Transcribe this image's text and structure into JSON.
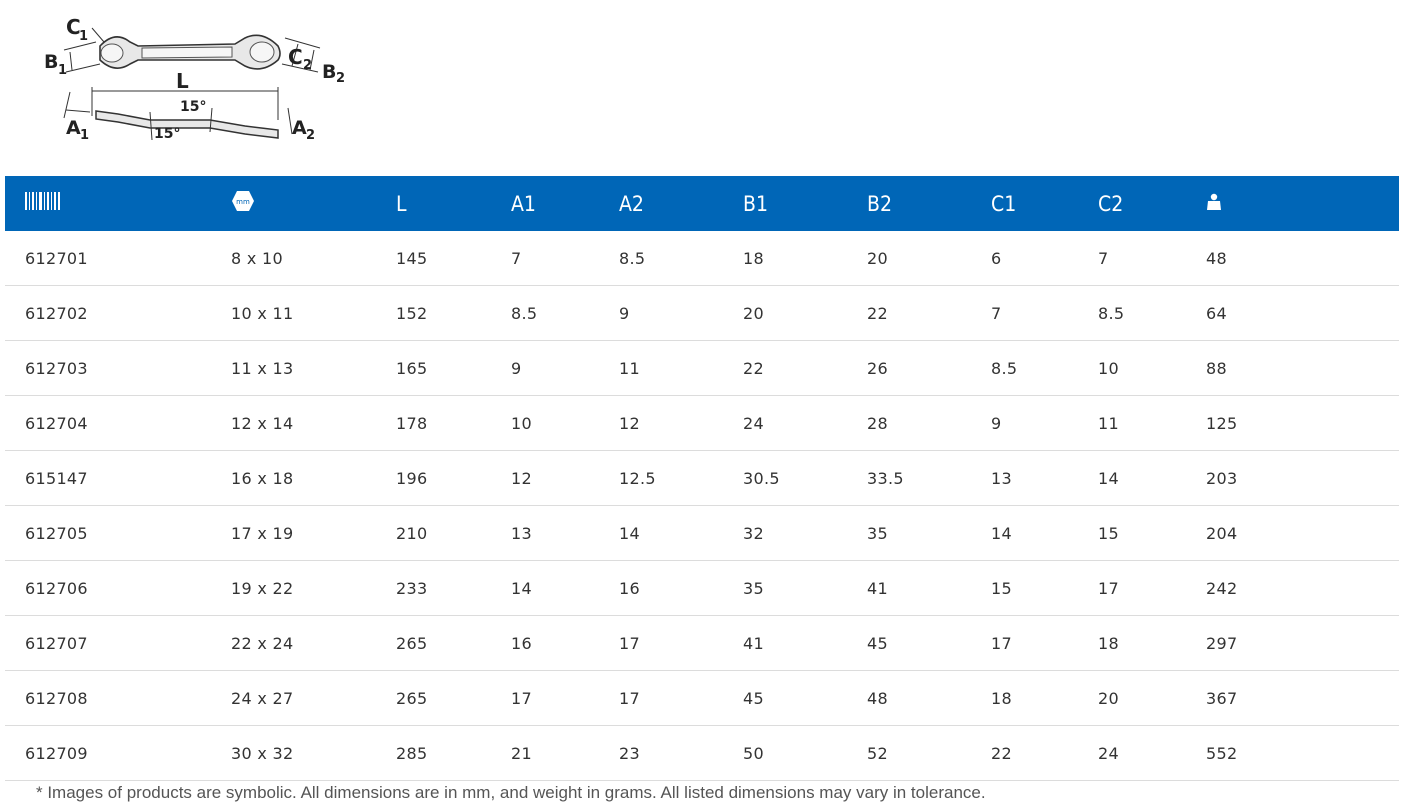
{
  "diagram": {
    "labels": {
      "c1": "C1",
      "b1": "B1",
      "c2": "C2",
      "b2": "B2",
      "l": "L",
      "a1": "A1",
      "a2": "A2",
      "angle_top": "15°",
      "angle_bottom": "15°"
    }
  },
  "table": {
    "header_icons": {
      "article": "barcode-icon",
      "size": "wrench-size-icon",
      "weight": "weight-icon"
    },
    "size_icon_text": "mm",
    "headers": {
      "l": "L",
      "a1": "A1",
      "a2": "A2",
      "b1": "B1",
      "b2": "B2",
      "c1": "C1",
      "c2": "C2"
    },
    "rows": [
      [
        "612701",
        "8 x 10",
        "145",
        "7",
        "8.5",
        "18",
        "20",
        "6",
        "7",
        "48"
      ],
      [
        "612702",
        "10 x 11",
        "152",
        "8.5",
        "9",
        "20",
        "22",
        "7",
        "8.5",
        "64"
      ],
      [
        "612703",
        "11 x 13",
        "165",
        "9",
        "11",
        "22",
        "26",
        "8.5",
        "10",
        "88"
      ],
      [
        "612704",
        "12 x 14",
        "178",
        "10",
        "12",
        "24",
        "28",
        "9",
        "11",
        "125"
      ],
      [
        "615147",
        "16 x 18",
        "196",
        "12",
        "12.5",
        "30.5",
        "33.5",
        "13",
        "14",
        "203"
      ],
      [
        "612705",
        "17 x 19",
        "210",
        "13",
        "14",
        "32",
        "35",
        "14",
        "15",
        "204"
      ],
      [
        "612706",
        "19 x 22",
        "233",
        "14",
        "16",
        "35",
        "41",
        "15",
        "17",
        "242"
      ],
      [
        "612707",
        "22 x 24",
        "265",
        "16",
        "17",
        "41",
        "45",
        "17",
        "18",
        "297"
      ],
      [
        "612708",
        "24 x 27",
        "265",
        "17",
        "17",
        "45",
        "48",
        "18",
        "20",
        "367"
      ],
      [
        "612709",
        "30 x 32",
        "285",
        "21",
        "23",
        "50",
        "52",
        "22",
        "24",
        "552"
      ]
    ],
    "colors": {
      "header_bg": "#0066b7",
      "header_text": "#ffffff",
      "row_border": "#dcdcdc"
    }
  },
  "footnote": "* Images of products are symbolic. All dimensions are in mm, and weight in grams. All listed dimensions may vary in tolerance."
}
